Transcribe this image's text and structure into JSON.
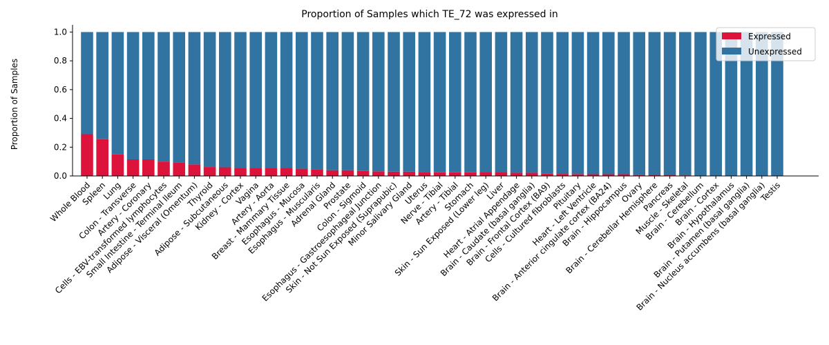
{
  "chart_data": {
    "type": "bar",
    "stacked": true,
    "title": "Proportion of Samples which TE_72 was expressed in",
    "xlabel": "",
    "ylabel": "Proportion of Samples",
    "ylim": [
      0,
      1.05
    ],
    "yticks": [
      "0.0",
      "0.2",
      "0.4",
      "0.6",
      "0.8",
      "1.0"
    ],
    "legend_position": "top-right",
    "categories": [
      "Whole Blood",
      "Spleen",
      "Lung",
      "Colon - Transverse",
      "Artery - Coronary",
      "Cells - EBV-transformed lymphocytes",
      "Small Intestine - Terminal Ileum",
      "Adipose - Visceral (Omentum)",
      "Thyroid",
      "Adipose - Subcutaneous",
      "Kidney - Cortex",
      "Vagina",
      "Artery - Aorta",
      "Breast - Mammary Tissue",
      "Esophagus - Mucosa",
      "Esophagus - Muscularis",
      "Adrenal Gland",
      "Prostate",
      "Colon - Sigmoid",
      "Esophagus - Gastroesophageal Junction",
      "Skin - Not Sun Exposed (Suprapubic)",
      "Minor Salivary Gland",
      "Uterus",
      "Nerve - Tibial",
      "Artery - Tibial",
      "Stomach",
      "Skin - Sun Exposed (Lower leg)",
      "Liver",
      "Heart - Atrial Appendage",
      "Brain - Caudate (basal ganglia)",
      "Brain - Frontal Cortex (BA9)",
      "Cells - Cultured fibroblasts",
      "Pituitary",
      "Heart - Left Ventricle",
      "Brain - Anterior cingulate cortex (BA24)",
      "Brain - Hippocampus",
      "Ovary",
      "Brain - Cerebellar Hemisphere",
      "Pancreas",
      "Muscle - Skeletal",
      "Brain - Cerebellum",
      "Brain - Cortex",
      "Brain - Hypothalamus",
      "Brain - Putamen (basal ganglia)",
      "Brain - Nucleus accumbens (basal ganglia)",
      "Testis"
    ],
    "series": [
      {
        "name": "Expressed",
        "color": "#dc143c",
        "values": [
          0.29,
          0.255,
          0.15,
          0.115,
          0.115,
          0.1,
          0.095,
          0.08,
          0.062,
          0.06,
          0.055,
          0.055,
          0.055,
          0.055,
          0.05,
          0.045,
          0.04,
          0.04,
          0.035,
          0.032,
          0.03,
          0.03,
          0.028,
          0.025,
          0.025,
          0.025,
          0.024,
          0.024,
          0.022,
          0.022,
          0.015,
          0.014,
          0.013,
          0.012,
          0.012,
          0.012,
          0.008,
          0.007,
          0.007,
          0.004,
          0.0,
          0.0,
          0.0,
          0.0,
          0.0,
          0.0
        ]
      },
      {
        "name": "Unexpressed",
        "color": "#3274a1",
        "values": [
          0.71,
          0.745,
          0.85,
          0.885,
          0.885,
          0.9,
          0.905,
          0.92,
          0.938,
          0.94,
          0.945,
          0.945,
          0.945,
          0.945,
          0.95,
          0.955,
          0.96,
          0.96,
          0.965,
          0.968,
          0.97,
          0.97,
          0.972,
          0.975,
          0.975,
          0.975,
          0.976,
          0.976,
          0.978,
          0.978,
          0.985,
          0.986,
          0.987,
          0.988,
          0.988,
          0.988,
          0.992,
          0.993,
          0.993,
          0.996,
          1.0,
          1.0,
          1.0,
          1.0,
          1.0,
          1.0
        ]
      }
    ]
  }
}
